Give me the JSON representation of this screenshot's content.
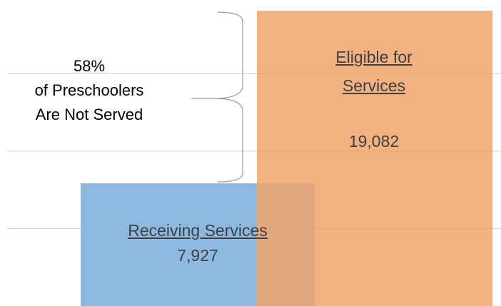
{
  "chart_data": {
    "type": "bar",
    "categories": [
      "Receiving Services",
      "Eligible for Services"
    ],
    "values": [
      7927,
      19082
    ],
    "value_labels": [
      "7,927",
      "19,082"
    ],
    "colors": [
      "#8db8e2",
      "#f0a36b"
    ],
    "ylim": [
      0,
      20000
    ],
    "yticks": [
      5000,
      10000,
      15000
    ],
    "grid": true,
    "annotation": {
      "value": 58,
      "label": "58%",
      "text": "of Preschoolers Are Not Served"
    }
  }
}
